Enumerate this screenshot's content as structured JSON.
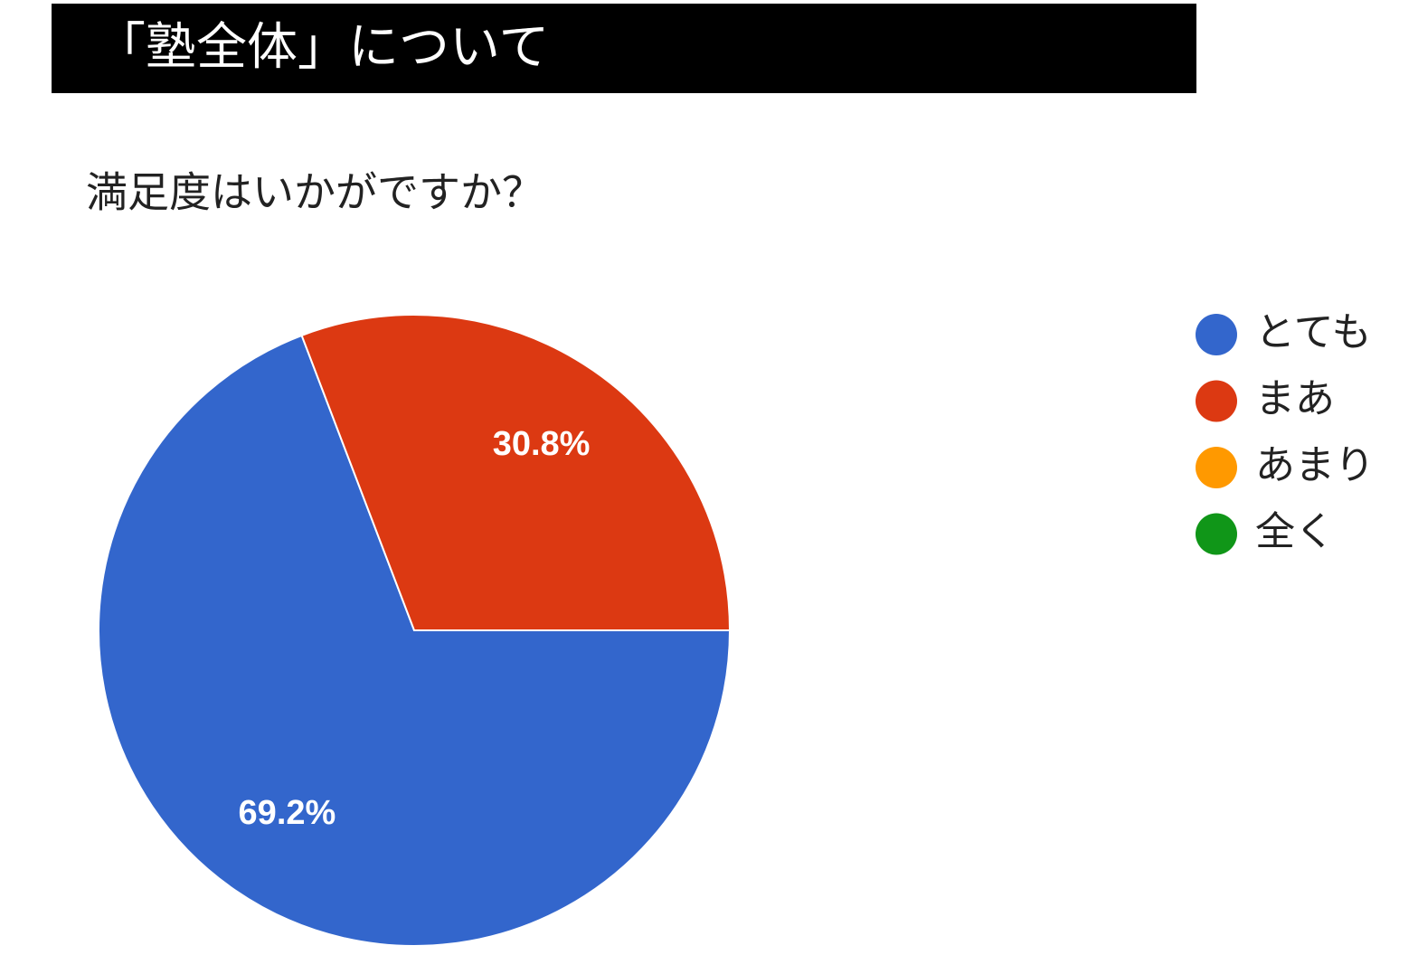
{
  "header": {
    "title": "「塾全体」について"
  },
  "chart_data": {
    "type": "pie",
    "title": "満足度はいかがですか？",
    "categories": [
      "とても",
      "まあ",
      "あまり",
      "全く"
    ],
    "values": [
      69.2,
      30.8,
      0,
      0
    ],
    "value_labels": [
      "69.2%",
      "30.8%",
      null,
      null
    ],
    "colors": [
      "#3366cc",
      "#dc3912",
      "#ff9900",
      "#109618"
    ],
    "legend": "right"
  }
}
